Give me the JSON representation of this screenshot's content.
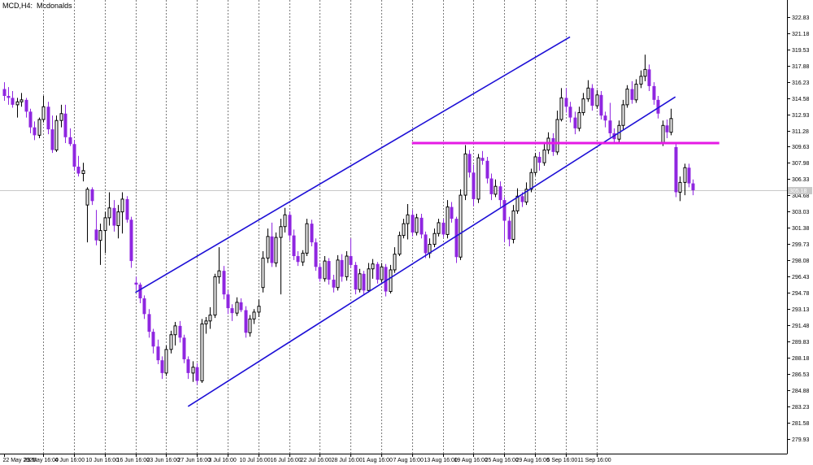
{
  "chart_data": {
    "type": "candlestick",
    "symbol": "MCD",
    "timeframe": "H4",
    "instrument": "Mcdonalds",
    "y_ticks": [
      322.83,
      321.18,
      319.53,
      317.88,
      316.23,
      314.58,
      312.93,
      311.28,
      309.63,
      307.98,
      306.33,
      304.68,
      303.03,
      301.38,
      299.73,
      298.08,
      296.43,
      294.78,
      293.13,
      291.48,
      289.83,
      288.18,
      286.53,
      284.88,
      283.23,
      281.58,
      279.93
    ],
    "ylim": [
      278.4,
      323.9
    ],
    "current_price": 305.18,
    "x_labels": [
      {
        "label": "22 May 2025",
        "bar": 0
      },
      {
        "label": "29 May 16:00",
        "bar": 9
      },
      {
        "label": "4 Jun 16:00",
        "bar": 16
      },
      {
        "label": "10 Jun 16:00",
        "bar": 23
      },
      {
        "label": "16 Jun 16:00",
        "bar": 30
      },
      {
        "label": "23 Jun 16:00",
        "bar": 37
      },
      {
        "label": "27 Jun 16:00",
        "bar": 44
      },
      {
        "label": "3 Jul 16:00",
        "bar": 51
      },
      {
        "label": "10 Jul 16:00",
        "bar": 58
      },
      {
        "label": "16 Jul 16:00",
        "bar": 65
      },
      {
        "label": "22 Jul 16:00",
        "bar": 72
      },
      {
        "label": "28 Jul 16:00",
        "bar": 79
      },
      {
        "label": "1 Aug 16:00",
        "bar": 86
      },
      {
        "label": "7 Aug 16:00",
        "bar": 93
      },
      {
        "label": "13 Aug 16:00",
        "bar": 100
      },
      {
        "label": "19 Aug 16:00",
        "bar": 107
      },
      {
        "label": "25 Aug 16:00",
        "bar": 114
      },
      {
        "label": "29 Aug 16:00",
        "bar": 121
      },
      {
        "label": "5 Sep 16:00",
        "bar": 128
      },
      {
        "label": "11 Sep 16:00",
        "bar": 135
      }
    ],
    "candles": [
      [
        315.5,
        316.2,
        314.3,
        314.8
      ],
      [
        314.8,
        315.7,
        313.9,
        314.6
      ],
      [
        314.6,
        315.3,
        313.6,
        313.9
      ],
      [
        313.9,
        314.6,
        312.6,
        314.2
      ],
      [
        314.2,
        315.1,
        313.7,
        314.4
      ],
      [
        314.4,
        314.6,
        312.6,
        313.2
      ],
      [
        313.2,
        313.5,
        311.0,
        311.6
      ],
      [
        311.6,
        312.2,
        310.3,
        310.8
      ],
      [
        310.8,
        312.6,
        310.5,
        312.4
      ],
      [
        312.4,
        314.8,
        312.1,
        313.7
      ],
      [
        313.7,
        314.2,
        310.9,
        311.4
      ],
      [
        311.4,
        312.8,
        309.0,
        309.3
      ],
      [
        309.3,
        312.8,
        309.1,
        312.3
      ],
      [
        312.3,
        313.9,
        311.6,
        313.0
      ],
      [
        313.0,
        313.9,
        310.0,
        310.6
      ],
      [
        310.6,
        311.5,
        309.7,
        309.9
      ],
      [
        309.9,
        310.3,
        307.2,
        307.6
      ],
      [
        307.6,
        308.7,
        306.6,
        306.9
      ],
      [
        306.9,
        308.0,
        306.1,
        307.2
      ],
      [
        303.7,
        305.5,
        299.9,
        305.3
      ],
      [
        305.3,
        305.5,
        303.7,
        304.1
      ],
      [
        301.2,
        303.2,
        299.6,
        300.1
      ],
      [
        300.1,
        301.8,
        297.6,
        301.1
      ],
      [
        301.1,
        303.0,
        298.8,
        302.4
      ],
      [
        302.4,
        305.0,
        301.6,
        303.4
      ],
      [
        303.4,
        304.2,
        301.0,
        301.6
      ],
      [
        301.6,
        303.7,
        300.3,
        303.0
      ],
      [
        303.0,
        305.0,
        300.8,
        304.3
      ],
      [
        304.3,
        304.6,
        301.9,
        302.2
      ],
      [
        302.2,
        302.5,
        297.3,
        298.0
      ],
      [
        295.8,
        296.4,
        295.1,
        295.6
      ],
      [
        295.6,
        295.8,
        293.7,
        294.2
      ],
      [
        294.2,
        294.5,
        292.1,
        292.6
      ],
      [
        292.6,
        293.1,
        290.2,
        290.8
      ],
      [
        290.8,
        291.1,
        288.6,
        289.3
      ],
      [
        289.3,
        290.0,
        287.5,
        287.9
      ],
      [
        287.9,
        288.3,
        286.0,
        286.6
      ],
      [
        286.6,
        289.4,
        286.3,
        289.0
      ],
      [
        289.0,
        290.9,
        288.6,
        290.5
      ],
      [
        290.5,
        291.8,
        289.4,
        291.4
      ],
      [
        291.4,
        291.9,
        289.7,
        290.2
      ],
      [
        290.2,
        290.5,
        287.6,
        288.0
      ],
      [
        288.0,
        288.3,
        286.0,
        286.6
      ],
      [
        286.6,
        287.8,
        285.7,
        287.2
      ],
      [
        287.2,
        287.6,
        285.4,
        285.8
      ],
      [
        285.8,
        292.1,
        285.6,
        291.6
      ],
      [
        291.6,
        292.3,
        290.6,
        291.9
      ],
      [
        291.9,
        293.3,
        291.1,
        292.5
      ],
      [
        292.5,
        296.7,
        292.2,
        296.4
      ],
      [
        296.4,
        299.4,
        295.7,
        297.0
      ],
      [
        297.0,
        297.5,
        294.1,
        294.6
      ],
      [
        294.6,
        295.0,
        292.6,
        293.2
      ],
      [
        293.2,
        293.6,
        291.9,
        292.7
      ],
      [
        292.7,
        294.3,
        292.4,
        293.8
      ],
      [
        293.8,
        294.2,
        292.8,
        293.0
      ],
      [
        293.0,
        293.4,
        290.2,
        290.7
      ],
      [
        290.7,
        292.5,
        290.3,
        292.1
      ],
      [
        292.1,
        293.1,
        291.6,
        292.8
      ],
      [
        292.8,
        294.1,
        292.3,
        293.4
      ],
      [
        295.3,
        299.0,
        294.8,
        298.3
      ],
      [
        298.3,
        301.3,
        297.8,
        300.5
      ],
      [
        300.5,
        301.9,
        297.4,
        297.8
      ],
      [
        297.8,
        300.9,
        297.4,
        300.4
      ],
      [
        300.4,
        302.3,
        294.6,
        301.5
      ],
      [
        301.5,
        303.4,
        300.9,
        302.7
      ],
      [
        302.7,
        303.0,
        300.1,
        300.6
      ],
      [
        300.6,
        301.2,
        298.1,
        298.5
      ],
      [
        298.5,
        299.0,
        297.5,
        297.9
      ],
      [
        297.9,
        299.1,
        297.5,
        298.8
      ],
      [
        298.8,
        302.3,
        298.5,
        301.8
      ],
      [
        301.8,
        302.2,
        299.5,
        299.9
      ],
      [
        299.9,
        300.3,
        297.0,
        297.4
      ],
      [
        297.4,
        297.8,
        295.9,
        296.2
      ],
      [
        296.2,
        298.5,
        295.9,
        298.0
      ],
      [
        298.0,
        298.3,
        295.6,
        296.1
      ],
      [
        296.1,
        296.6,
        294.8,
        295.3
      ],
      [
        295.3,
        298.6,
        295.0,
        298.1
      ],
      [
        298.1,
        298.7,
        295.9,
        296.4
      ],
      [
        296.4,
        299.0,
        296.0,
        298.5
      ],
      [
        298.5,
        300.3,
        297.3,
        297.6
      ],
      [
        297.6,
        297.9,
        294.6,
        295.1
      ],
      [
        295.1,
        297.2,
        294.8,
        296.7
      ],
      [
        296.7,
        297.0,
        294.6,
        295.0
      ],
      [
        295.0,
        297.8,
        294.8,
        297.2
      ],
      [
        297.2,
        298.2,
        296.2,
        297.7
      ],
      [
        297.7,
        297.9,
        295.7,
        296.1
      ],
      [
        296.1,
        297.8,
        295.8,
        297.4
      ],
      [
        297.4,
        297.7,
        294.4,
        294.9
      ],
      [
        294.9,
        297.6,
        294.7,
        297.1
      ],
      [
        297.1,
        299.4,
        296.8,
        298.7
      ],
      [
        298.7,
        301.0,
        298.5,
        300.6
      ],
      [
        300.6,
        302.3,
        300.3,
        301.8
      ],
      [
        301.8,
        303.8,
        300.2,
        302.7
      ],
      [
        302.7,
        303.2,
        300.5,
        300.9
      ],
      [
        300.9,
        302.8,
        300.6,
        302.4
      ],
      [
        302.4,
        302.8,
        300.3,
        300.7
      ],
      [
        300.7,
        301.0,
        298.3,
        298.8
      ],
      [
        298.8,
        300.3,
        298.3,
        299.7
      ],
      [
        299.7,
        301.3,
        299.4,
        300.8
      ],
      [
        300.8,
        302.3,
        300.5,
        301.9
      ],
      [
        301.9,
        302.3,
        300.4,
        300.7
      ],
      [
        300.7,
        304.2,
        300.3,
        303.5
      ],
      [
        303.5,
        304.0,
        301.9,
        302.3
      ],
      [
        302.3,
        302.5,
        297.8,
        298.4
      ],
      [
        298.4,
        305.3,
        298.1,
        304.7
      ],
      [
        304.7,
        309.8,
        304.2,
        308.9
      ],
      [
        308.9,
        309.3,
        306.5,
        307.0
      ],
      [
        307.0,
        307.8,
        303.6,
        304.3
      ],
      [
        304.3,
        308.9,
        303.9,
        308.5
      ],
      [
        308.5,
        309.2,
        307.8,
        308.2
      ],
      [
        308.2,
        308.6,
        305.9,
        306.4
      ],
      [
        306.4,
        306.9,
        304.2,
        304.8
      ],
      [
        304.8,
        306.3,
        304.5,
        305.6
      ],
      [
        305.6,
        306.1,
        303.5,
        304.2
      ],
      [
        304.2,
        304.5,
        299.9,
        302.1
      ],
      [
        302.1,
        302.5,
        299.5,
        300.2
      ],
      [
        300.2,
        303.7,
        299.8,
        303.1
      ],
      [
        303.1,
        305.4,
        302.8,
        304.6
      ],
      [
        304.6,
        305.0,
        303.5,
        304.0
      ],
      [
        304.0,
        306.0,
        303.7,
        305.3
      ],
      [
        305.3,
        307.4,
        305.0,
        307.0
      ],
      [
        307.0,
        309.0,
        306.7,
        308.6
      ],
      [
        308.6,
        309.1,
        307.2,
        308.0
      ],
      [
        308.0,
        309.9,
        307.7,
        309.3
      ],
      [
        309.3,
        311.1,
        308.9,
        310.5
      ],
      [
        310.5,
        311.0,
        308.7,
        309.1
      ],
      [
        309.1,
        313.3,
        308.8,
        312.4
      ],
      [
        312.4,
        315.6,
        312.2,
        314.6
      ],
      [
        314.6,
        315.6,
        313.1,
        313.7
      ],
      [
        313.7,
        314.2,
        312.1,
        312.6
      ],
      [
        312.6,
        313.2,
        310.9,
        311.5
      ],
      [
        311.5,
        313.7,
        311.2,
        313.1
      ],
      [
        313.1,
        315.1,
        312.8,
        314.5
      ],
      [
        314.5,
        316.4,
        314.2,
        315.6
      ],
      [
        315.6,
        316.0,
        313.3,
        313.8
      ],
      [
        313.8,
        315.4,
        313.5,
        314.9
      ],
      [
        314.9,
        315.3,
        312.4,
        312.8
      ],
      [
        312.8,
        313.2,
        311.6,
        312.3
      ],
      [
        312.3,
        314.1,
        310.6,
        311.0
      ],
      [
        311.0,
        311.5,
        310.0,
        310.4
      ],
      [
        310.4,
        312.3,
        310.1,
        311.8
      ],
      [
        311.8,
        314.4,
        311.4,
        313.9
      ],
      [
        313.9,
        315.9,
        313.6,
        315.5
      ],
      [
        315.5,
        316.3,
        314.0,
        314.4
      ],
      [
        314.4,
        316.5,
        314.1,
        316.0
      ],
      [
        316.0,
        317.4,
        315.6,
        316.8
      ],
      [
        316.8,
        319.0,
        316.3,
        317.5
      ],
      [
        317.5,
        318.0,
        315.3,
        315.8
      ],
      [
        315.8,
        316.2,
        313.9,
        314.4
      ],
      [
        314.4,
        314.8,
        312.5,
        313.0
      ],
      [
        310.0,
        312.3,
        309.7,
        311.8
      ],
      [
        311.8,
        312.4,
        310.5,
        311.1
      ],
      [
        311.1,
        313.5,
        310.8,
        312.5
      ],
      [
        309.6,
        310.0,
        304.5,
        305.0
      ],
      [
        305.0,
        306.6,
        304.1,
        306.0
      ],
      [
        306.0,
        307.9,
        304.7,
        307.5
      ],
      [
        307.5,
        307.9,
        305.5,
        305.9
      ],
      [
        305.9,
        306.3,
        304.7,
        305.2
      ]
    ],
    "lines": [
      {
        "name": "upper-channel",
        "color": "#1d0fd6",
        "p1": [
          30,
          294.8
        ],
        "p2": [
          129,
          320.8
        ]
      },
      {
        "name": "lower-channel",
        "color": "#1d0fd6",
        "p1": [
          42,
          283.2
        ],
        "p2": [
          153,
          314.7
        ]
      },
      {
        "name": "resistance",
        "color": "#e51ae5",
        "p1": [
          93,
          310.0
        ],
        "p2": [
          163,
          310.0
        ]
      }
    ],
    "colors": {
      "bull": "#000000",
      "bear": "#8f26e0",
      "accent": "#e51ae5",
      "channel": "#1d0fd6",
      "grid": "#7a7a7a",
      "axis": "#000000",
      "price_line": "#c8c8c8",
      "price_label_bg": "#c8c8c8",
      "price_label_text": "#ffffff"
    }
  }
}
